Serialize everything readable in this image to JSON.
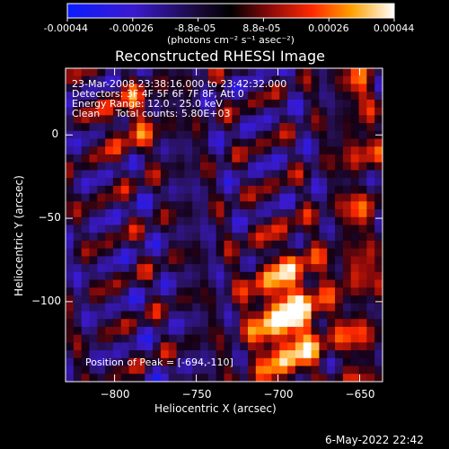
{
  "colorbar": {
    "tick_labels": [
      "-0.00044",
      "-0.00026",
      "-8.8e-05",
      "8.8e-05",
      "0.00026",
      "0.00044"
    ],
    "unit_label": "(photons cm⁻² s⁻¹ asec⁻²)",
    "range": [
      -0.00044,
      0.00044
    ]
  },
  "chart_data": {
    "type": "heatmap",
    "title": "Reconstructed RHESSI Image",
    "xlabel": "Heliocentric X (arcsec)",
    "ylabel": "Heliocentric Y (arcsec)",
    "xlim": [
      -830,
      -636
    ],
    "ylim": [
      -148,
      40
    ],
    "xticks": [
      -800,
      -750,
      -700,
      -650
    ],
    "yticks": [
      0,
      -50,
      -100
    ],
    "xtick_labels": [
      "−800",
      "−750",
      "−700",
      "−650"
    ],
    "ytick_labels": [
      "0",
      "−50",
      "−100"
    ],
    "peak": [
      -694,
      -110
    ],
    "annotations": [
      "23-Mar-2008 23:38:16.000 to 23:42:32.000",
      "Detectors: 3F 4F 5F 6F 7F 8F, Att 0",
      "Energy Range: 12.0 - 25.0 keV",
      "Clean     Total counts: 5.80E+03"
    ],
    "peak_label": "Position of Peak = [-694,-110]"
  },
  "footer": {
    "date": "6-May-2022 22:42"
  }
}
